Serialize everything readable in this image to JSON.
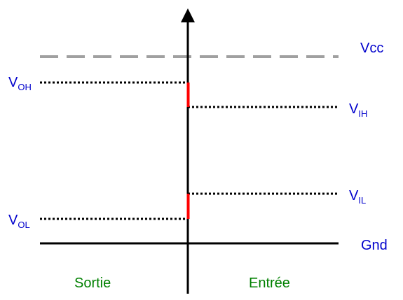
{
  "colors": {
    "axis": "#000000",
    "dotted": "#000000",
    "vcc_dash": "#a0a0a0",
    "margin_red": "#ff0000",
    "label_blue": "#0000cc",
    "label_green": "#008000"
  },
  "labels": {
    "vcc": "Vcc",
    "gnd": "Gnd",
    "voh": {
      "main": "V",
      "sub": "OH"
    },
    "vol": {
      "main": "V",
      "sub": "OL"
    },
    "vih": {
      "main": "V",
      "sub": "IH"
    },
    "vil": {
      "main": "V",
      "sub": "IL"
    },
    "output": "Sortie",
    "input": "Entrée"
  }
}
